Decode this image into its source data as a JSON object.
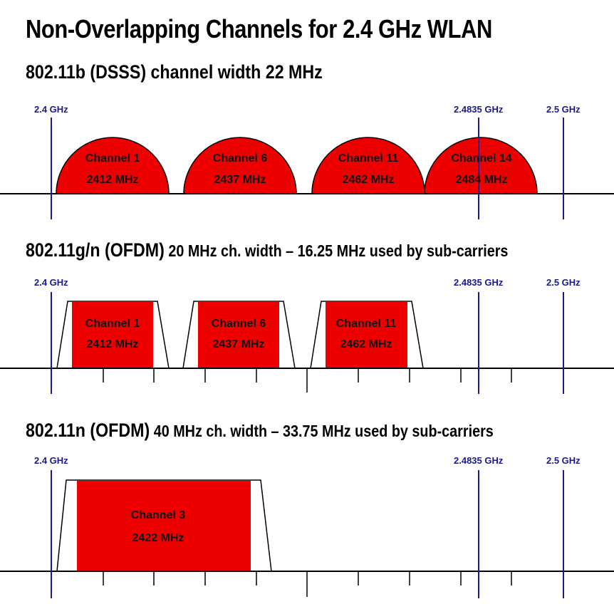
{
  "title": "Non-Overlapping Channels for 2.4 GHz WLAN",
  "sections": [
    {
      "heading_main": "802.11b (DSSS) channel width 22 MHz",
      "heading_rest": "",
      "markers": [
        "2.4 GHz",
        "2.4835 GHz",
        "2.5 GHz"
      ],
      "channels": [
        {
          "name": "Channel 1",
          "freq": "2412 MHz"
        },
        {
          "name": "Channel 6",
          "freq": "2437 MHz"
        },
        {
          "name": "Channel 11",
          "freq": "2462 MHz"
        },
        {
          "name": "Channel 14",
          "freq": "2484 MHz"
        }
      ]
    },
    {
      "heading_main": "802.11g/n (OFDM)",
      "heading_rest": " 20 MHz ch. width – 16.25 MHz used by sub-carriers",
      "markers": [
        "2.4 GHz",
        "2.4835 GHz",
        "2.5 GHz"
      ],
      "channels": [
        {
          "name": "Channel 1",
          "freq": "2412 MHz"
        },
        {
          "name": "Channel 6",
          "freq": "2437 MHz"
        },
        {
          "name": "Channel 11",
          "freq": "2462 MHz"
        }
      ]
    },
    {
      "heading_main": "802.11n (OFDM)",
      "heading_rest": " 40 MHz ch. width – 33.75 MHz used by sub-carriers",
      "markers": [
        "2.4 GHz",
        "2.4835 GHz",
        "2.5 GHz"
      ],
      "channels": [
        {
          "name": "Channel 3",
          "freq": "2422 MHz"
        }
      ]
    }
  ],
  "colors": {
    "channel_fill": "#ee0000",
    "marker": "#1a1a8c",
    "axis": "#000000"
  }
}
